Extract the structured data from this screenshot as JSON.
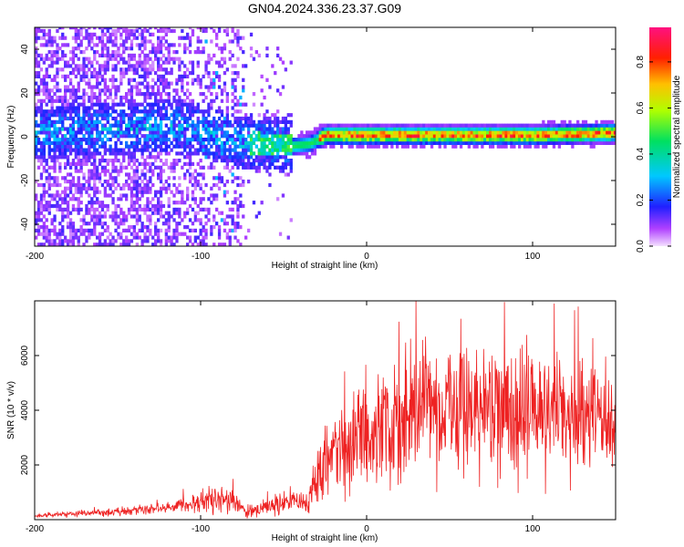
{
  "figure": {
    "title": "GN04.2024.336.23.37.G09"
  },
  "colors": {
    "snr_line": "#ee2222",
    "axis": "#000000",
    "background": "#ffffff"
  },
  "chart_data": [
    {
      "type": "heatmap",
      "xlabel": "Height of straight line (km)",
      "ylabel": "Frequency (Hz)",
      "xlim": [
        -200,
        150
      ],
      "ylim": [
        -50,
        50
      ],
      "xticks": [
        -200,
        -100,
        0,
        100
      ],
      "yticks": [
        -40,
        -20,
        0,
        20,
        40
      ],
      "colormap": "rainbow (magenta-blue-cyan-green-yellow-red)",
      "colorbar": {
        "label": "Normalized spectral amplitude",
        "range": [
          0.0,
          0.95
        ],
        "ticks": [
          "0.0",
          "0.2",
          "0.4",
          "0.6",
          "0.8"
        ]
      },
      "ridge": {
        "description": "dominant frequency track",
        "points": [
          [
            -150,
            3
          ],
          [
            -120,
            4
          ],
          [
            -100,
            2
          ],
          [
            -80,
            -3
          ],
          [
            -60,
            -4
          ],
          [
            -45,
            -5
          ],
          [
            -35,
            -4
          ],
          [
            -25,
            0
          ],
          [
            0,
            0
          ],
          [
            50,
            0
          ],
          [
            100,
            0
          ],
          [
            150,
            1
          ]
        ]
      },
      "grid": false
    },
    {
      "type": "line",
      "xlabel": "Height of straight line (km)",
      "ylabel": "SNR (10 * v/v)",
      "xlim": [
        -200,
        150
      ],
      "ylim": [
        0,
        8000
      ],
      "xticks": [
        -200,
        -100,
        0,
        100
      ],
      "yticks": [
        2000,
        4000,
        6000
      ],
      "series": [
        {
          "color": "#ee2222",
          "envelope": [
            [
              -200,
              150,
              0.4
            ],
            [
              -160,
              250,
              0.5
            ],
            [
              -120,
              400,
              0.5
            ],
            [
              -105,
              650,
              0.55
            ],
            [
              -90,
              800,
              0.6
            ],
            [
              -80,
              650,
              0.6
            ],
            [
              -72,
              300,
              0.6
            ],
            [
              -55,
              500,
              0.6
            ],
            [
              -45,
              700,
              0.6
            ],
            [
              -35,
              600,
              0.6
            ],
            [
              -30,
              1700,
              0.6
            ],
            [
              -20,
              2300,
              0.6
            ],
            [
              -10,
              2800,
              0.6
            ],
            [
              0,
              3200,
              0.6
            ],
            [
              20,
              3700,
              0.6
            ],
            [
              40,
              3900,
              0.6
            ],
            [
              60,
              4000,
              0.55
            ],
            [
              80,
              3900,
              0.55
            ],
            [
              100,
              3800,
              0.55
            ],
            [
              120,
              3600,
              0.55
            ],
            [
              150,
              3500,
              0.55
            ]
          ],
          "peak": [
            113,
            7900
          ]
        }
      ],
      "grid": false
    }
  ]
}
